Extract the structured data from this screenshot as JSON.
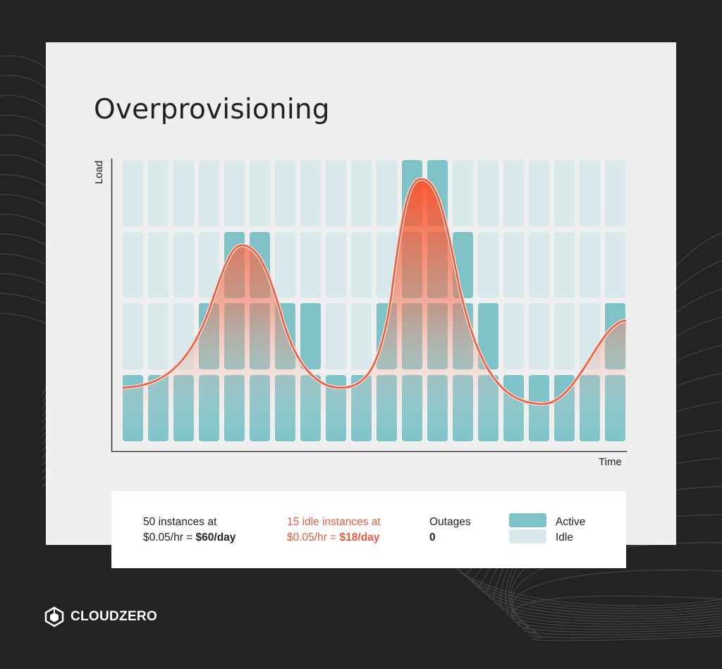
{
  "title": "Overprovisioning",
  "axes": {
    "y_label": "Load",
    "x_label": "Time"
  },
  "colors": {
    "active": "#7fc3c9",
    "idle": "#d9e8eb",
    "load_curve": "#ea5a3c",
    "background": "#232323",
    "card": "#efefef"
  },
  "grid": {
    "rows": 4,
    "active_per_column": [
      1,
      1,
      1,
      2,
      3,
      3,
      2,
      2,
      1,
      1,
      2,
      4,
      4,
      3,
      2,
      1,
      1,
      1,
      1,
      2
    ]
  },
  "summary": {
    "total": {
      "line1": "50 instances at",
      "line2_prefix": "$0.05/hr = ",
      "line2_bold": "$60/day"
    },
    "idle": {
      "line1": "15 idle instances at",
      "line2_prefix": "$0.05/hr = ",
      "line2_bold": "$18/day"
    },
    "outages": {
      "label": "Outages",
      "value": "0"
    }
  },
  "legend": [
    {
      "label": "Active"
    },
    {
      "label": "Idle"
    }
  ],
  "brand": {
    "name": "CLOUDZERO",
    "icon": "cloudzero-logo-icon"
  }
}
